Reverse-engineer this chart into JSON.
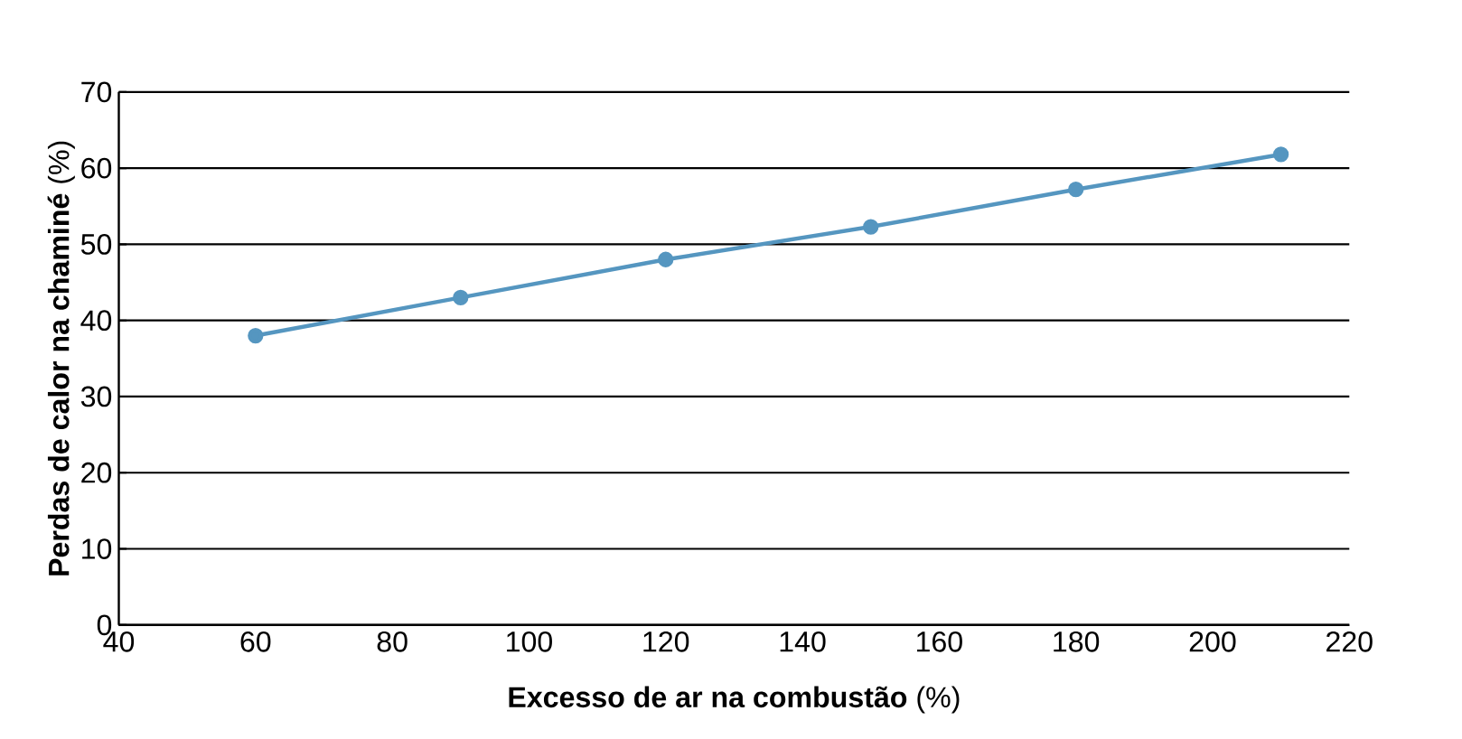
{
  "chart_data": {
    "type": "line",
    "xlabel": "**Excesso de ar na combustão** (%)",
    "ylabel": "**Perdas de calor na chaminé** (%)",
    "x": [
      60,
      90,
      120,
      150,
      180,
      210
    ],
    "series": [
      {
        "color": "#5596c0",
        "values": [
          38,
          43,
          48,
          52.3,
          57.2,
          61.8
        ]
      }
    ],
    "xlim": [
      40,
      220
    ],
    "xticks": [
      40,
      60,
      80,
      100,
      120,
      140,
      160,
      180,
      200,
      220
    ],
    "ylim": [
      0,
      70
    ],
    "yticks": [
      0,
      10,
      20,
      30,
      40,
      50,
      60,
      70
    ],
    "grid": "y",
    "marker": "circle",
    "line_style": "solid"
  }
}
